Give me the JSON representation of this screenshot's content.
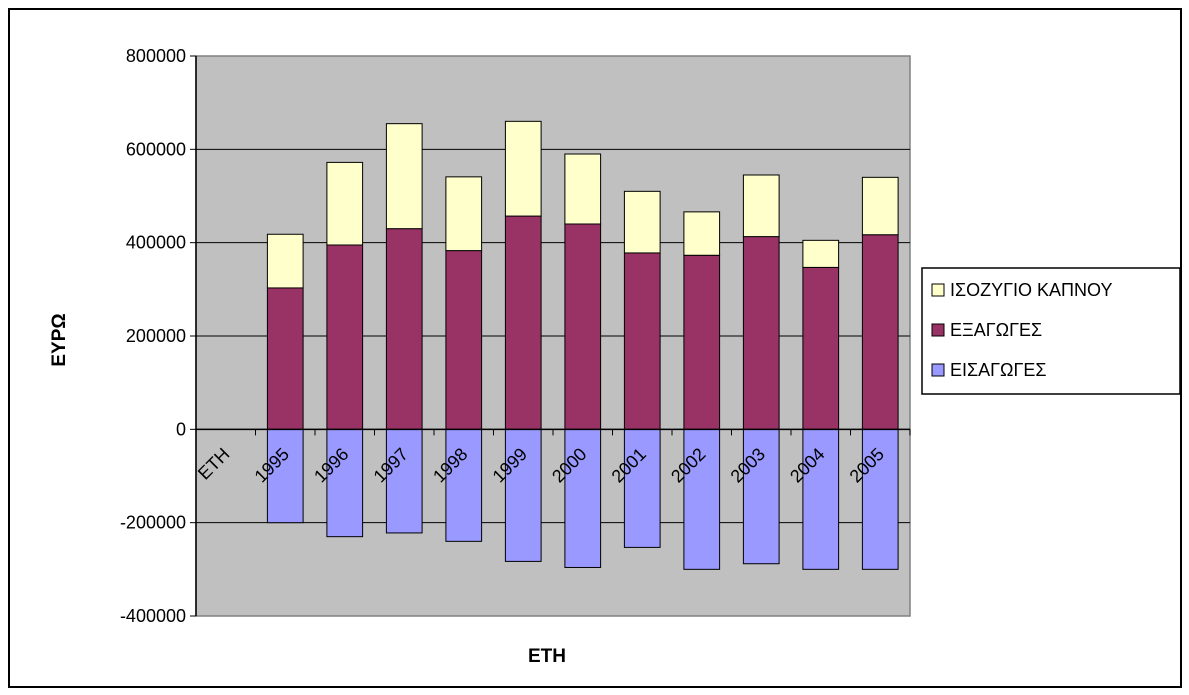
{
  "chart_data": {
    "type": "bar",
    "stacked": true,
    "categories": [
      "ETH",
      "1995",
      "1996",
      "1997",
      "1998",
      "1999",
      "2000",
      "2001",
      "2002",
      "2003",
      "2004",
      "2005"
    ],
    "series": [
      {
        "name": "ΕΙΣΑΓΩΓΕΣ",
        "color": "#9999ff",
        "values": [
          null,
          -200000,
          -230000,
          -222000,
          -240000,
          -283000,
          -296000,
          -253000,
          -300000,
          -288000,
          -300000,
          -300000
        ]
      },
      {
        "name": "ΕΞΑΓΩΓΕΣ",
        "color": "#993366",
        "values": [
          null,
          303000,
          395000,
          430000,
          383000,
          457000,
          440000,
          378000,
          373000,
          413000,
          347000,
          417000
        ]
      },
      {
        "name": "ΙΣΟΖΥΓΙΟ ΚΑΠΝΟΥ",
        "color": "#ffffcc",
        "values": [
          null,
          115000,
          177000,
          225000,
          158000,
          203000,
          150000,
          132000,
          93000,
          132000,
          58000,
          123000
        ]
      }
    ],
    "xlabel": "ΕΤΗ",
    "ylabel": "ΕΥΡΩ",
    "ylim": [
      -400000,
      800000
    ],
    "yticks": [
      "800000",
      "600000",
      "400000",
      "200000",
      "0",
      "-200000",
      "-400000"
    ],
    "yticks_values": [
      800000,
      600000,
      400000,
      200000,
      0,
      -200000,
      -400000
    ],
    "grid": true,
    "plot_background": "#c0c0c0",
    "legend_position": "right",
    "legend_order": [
      "ΙΣΟΖΥΓΙΟ ΚΑΠΝΟΥ",
      "ΕΞΑΓΩΓΕΣ",
      "ΕΙΣΑΓΩΓΕΣ"
    ]
  }
}
